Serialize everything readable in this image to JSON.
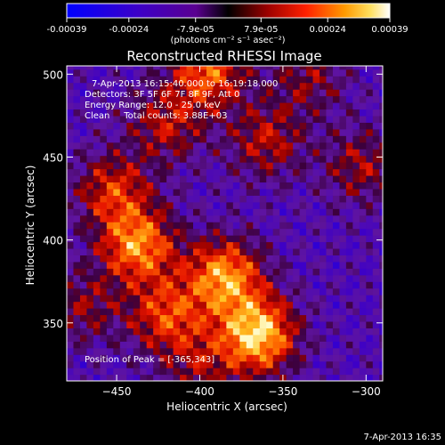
{
  "colorbar": {
    "ticks": [
      "-0.00039",
      "-0.00024",
      "-7.9e-05",
      "7.9e-05",
      "0.00024",
      "0.00039"
    ],
    "units": "(photons cm⁻² s⁻¹ asec⁻²)",
    "range": [
      -0.00039,
      0.00039
    ]
  },
  "chart_data": {
    "type": "heatmap",
    "title": "Reconstructed RHESSI Image",
    "xlabel": "Heliocentric X (arcsec)",
    "ylabel": "Heliocentric Y (arcsec)",
    "xlim": [
      -480,
      -290
    ],
    "ylim": [
      315,
      505
    ],
    "x_ticks": [
      -450,
      -400,
      -350,
      -300
    ],
    "y_ticks": [
      350,
      400,
      450,
      500
    ],
    "peak": {
      "x": -365,
      "y": 343,
      "label": "Position of Peak = [-365,343]"
    },
    "annotations": [
      "7-Apr-2013 16:15:40.000 to 16:19:18.000",
      "Detectors: 3F 5F 6F 7F 8F 9F, Att 0",
      "Energy Range: 12.0 - 25.0 keV",
      "Clean     Total counts: 3.88E+03"
    ],
    "hotspots": [
      {
        "x": -365,
        "y": 343,
        "v": 1.0
      },
      {
        "x": -385,
        "y": 378,
        "v": 0.85
      },
      {
        "x": -437,
        "y": 397,
        "v": 0.8
      },
      {
        "x": -420,
        "y": 355,
        "v": 0.6
      },
      {
        "x": -452,
        "y": 430,
        "v": 0.55
      },
      {
        "x": -395,
        "y": 502,
        "v": 0.7
      },
      {
        "x": -420,
        "y": 470,
        "v": 0.45
      },
      {
        "x": -360,
        "y": 460,
        "v": 0.45
      },
      {
        "x": -303,
        "y": 445,
        "v": 0.4
      },
      {
        "x": -335,
        "y": 498,
        "v": 0.35
      },
      {
        "x": -470,
        "y": 360,
        "v": 0.35
      },
      {
        "x": -400,
        "y": 325,
        "v": 0.35
      }
    ]
  },
  "footer_date": "7-Apr-2013 16:35"
}
